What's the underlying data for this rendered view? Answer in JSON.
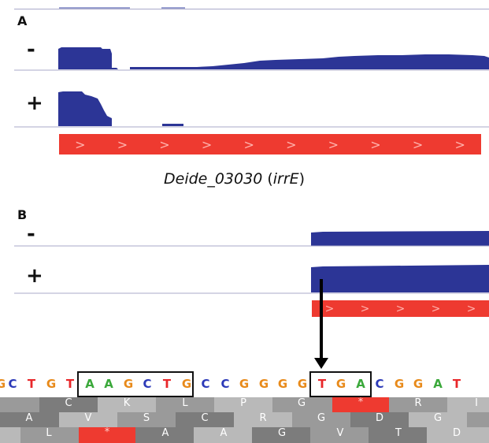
{
  "colors": {
    "coverage": "#2c3596",
    "gene": "#ee3a30",
    "divider": "#a9a9c9",
    "base_A": "#3aa83a",
    "base_C": "#2c3ab8",
    "base_G": "#e88a1a",
    "base_T": "#e8272a",
    "aa_light": "#b9b9b9",
    "aa_mid": "#9a9a9a",
    "aa_dark": "#7c7c7c",
    "stop_codon": "#ee3a30"
  },
  "panel_a": {
    "label": "A",
    "minus_label": "-",
    "plus_label": "+",
    "gene_name": "Deide_03030",
    "gene_alias": "irrE",
    "gene_caption_open": " (",
    "gene_caption_close": ")",
    "gene_arrow_glyph": ">",
    "gene_arrow_count": 10
  },
  "panel_b": {
    "label": "B",
    "minus_label": "-",
    "plus_label": "+",
    "gene_arrow_glyph": ">",
    "gene_arrow_count": 5
  },
  "sequence": {
    "bases": [
      "C",
      "T",
      "G",
      "T",
      "A",
      "A",
      "G",
      "C",
      "T",
      "G",
      "C",
      "C",
      "G",
      "G",
      "G",
      "G",
      "T",
      "G",
      "A",
      "C",
      "G",
      "G",
      "A",
      "T"
    ],
    "boxed_motif_1": "TAAGCT",
    "boxed_motif_2": "GTG",
    "frame1_aa": [
      "C",
      "K",
      "L",
      "P",
      "G",
      "*",
      "R",
      "I"
    ],
    "frame2_aa": [
      "A",
      "V",
      "S",
      "C",
      "R",
      "G",
      "D",
      "G"
    ],
    "frame3_aa": [
      "L",
      "*",
      "A",
      "A",
      "G",
      "V",
      "T",
      "D"
    ]
  }
}
